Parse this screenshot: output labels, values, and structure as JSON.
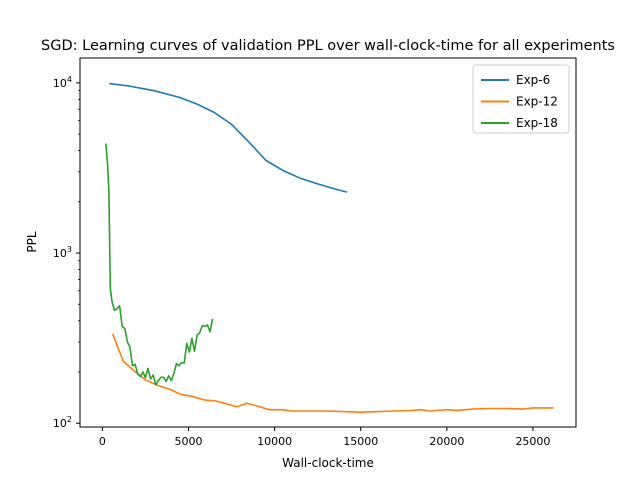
{
  "chart_data": {
    "type": "line",
    "title": "SGD: Learning curves of validation PPL over wall-clock-time for all experiments",
    "xlabel": "Wall-clock-time",
    "ylabel": "PPL",
    "xlim": [
      -1300,
      27500
    ],
    "ylim": [
      95,
      14000
    ],
    "yscale": "log",
    "grid": false,
    "legend": "top-right",
    "x_ticks": [
      0,
      5000,
      10000,
      15000,
      20000,
      25000
    ],
    "x_tick_labels": [
      "0",
      "5000",
      "10000",
      "15000",
      "20000",
      "25000"
    ],
    "y_ticks": [
      100,
      1000,
      10000
    ],
    "y_tick_labels": [
      {
        "base": "10",
        "exp": "2"
      },
      {
        "base": "10",
        "exp": "3"
      },
      {
        "base": "10",
        "exp": "4"
      }
    ],
    "series": [
      {
        "name": "Exp-6",
        "color": "#1f77b4",
        "points": [
          [
            400,
            9900
          ],
          [
            1500,
            9600
          ],
          [
            3000,
            9000
          ],
          [
            4500,
            8200
          ],
          [
            5500,
            7500
          ],
          [
            6500,
            6700
          ],
          [
            7500,
            5700
          ],
          [
            8500,
            4500
          ],
          [
            9500,
            3500
          ],
          [
            10500,
            3050
          ],
          [
            11500,
            2750
          ],
          [
            12500,
            2550
          ],
          [
            13500,
            2380
          ],
          [
            14200,
            2280
          ]
        ]
      },
      {
        "name": "Exp-12",
        "color": "#ff7f0e",
        "points": [
          [
            600,
            335
          ],
          [
            1200,
            232
          ],
          [
            1800,
            205
          ],
          [
            2500,
            180
          ],
          [
            3200,
            167
          ],
          [
            4000,
            157
          ],
          [
            4500,
            148
          ],
          [
            5200,
            144
          ],
          [
            5900,
            137
          ],
          [
            6600,
            135
          ],
          [
            7200,
            130
          ],
          [
            7800,
            125
          ],
          [
            8400,
            131
          ],
          [
            9000,
            126
          ],
          [
            9700,
            120
          ],
          [
            10400,
            120
          ],
          [
            11000,
            118
          ],
          [
            12000,
            118
          ],
          [
            13000,
            118
          ],
          [
            14000,
            117
          ],
          [
            15000,
            116
          ],
          [
            16000,
            117
          ],
          [
            17000,
            118
          ],
          [
            18000,
            119
          ],
          [
            18500,
            120
          ],
          [
            19000,
            118
          ],
          [
            20000,
            120
          ],
          [
            20600,
            119
          ],
          [
            21500,
            121
          ],
          [
            22500,
            122
          ],
          [
            23500,
            122
          ],
          [
            24400,
            121
          ],
          [
            25000,
            123
          ],
          [
            26200,
            123
          ]
        ]
      },
      {
        "name": "Exp-18",
        "color": "#2ca02c",
        "points": [
          [
            200,
            4400
          ],
          [
            300,
            3300
          ],
          [
            380,
            2300
          ],
          [
            460,
            620
          ],
          [
            560,
            520
          ],
          [
            700,
            460
          ],
          [
            850,
            470
          ],
          [
            1000,
            490
          ],
          [
            1150,
            370
          ],
          [
            1300,
            360
          ],
          [
            1450,
            300
          ],
          [
            1600,
            280
          ],
          [
            1750,
            218
          ],
          [
            1900,
            222
          ],
          [
            2050,
            195
          ],
          [
            2200,
            188
          ],
          [
            2350,
            200
          ],
          [
            2500,
            185
          ],
          [
            2650,
            210
          ],
          [
            2800,
            182
          ],
          [
            2950,
            192
          ],
          [
            3100,
            168
          ],
          [
            3250,
            178
          ],
          [
            3400,
            186
          ],
          [
            3550,
            186
          ],
          [
            3700,
            176
          ],
          [
            3850,
            190
          ],
          [
            4000,
            178
          ],
          [
            4150,
            196
          ],
          [
            4300,
            224
          ],
          [
            4450,
            218
          ],
          [
            4600,
            227
          ],
          [
            4750,
            226
          ],
          [
            4900,
            295
          ],
          [
            5050,
            262
          ],
          [
            5200,
            315
          ],
          [
            5350,
            265
          ],
          [
            5500,
            330
          ],
          [
            5650,
            340
          ],
          [
            5800,
            375
          ],
          [
            5950,
            370
          ],
          [
            6100,
            378
          ],
          [
            6250,
            345
          ],
          [
            6400,
            410
          ]
        ]
      }
    ]
  }
}
